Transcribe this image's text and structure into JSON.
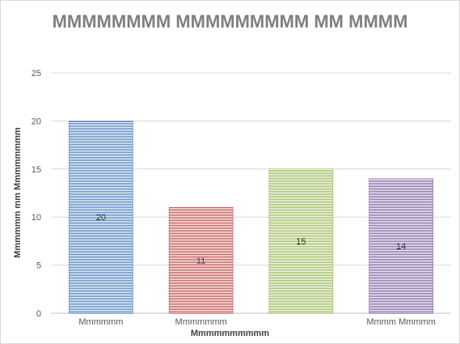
{
  "chart_data": {
    "type": "bar",
    "title": "MMMMMMMM MMMMMMMMM MM MMMM",
    "xlabel": "Mmmmmmmmmm",
    "ylabel": "Mmmmmm mm Mmmmmmmm",
    "categories": [
      "Mmmmmm",
      "Mmmmmmm",
      "",
      "Mmmm Mmmmm"
    ],
    "values": [
      20,
      11,
      15,
      14
    ],
    "data_labels": [
      "20",
      "11",
      "15",
      "14"
    ],
    "colors": [
      "#4f81bd",
      "#c0504d",
      "#9bbb59",
      "#8064a2"
    ],
    "ylim": [
      0,
      25
    ],
    "yticks": [
      0,
      5,
      10,
      15,
      20,
      25
    ],
    "grid": true,
    "legend": "none"
  }
}
